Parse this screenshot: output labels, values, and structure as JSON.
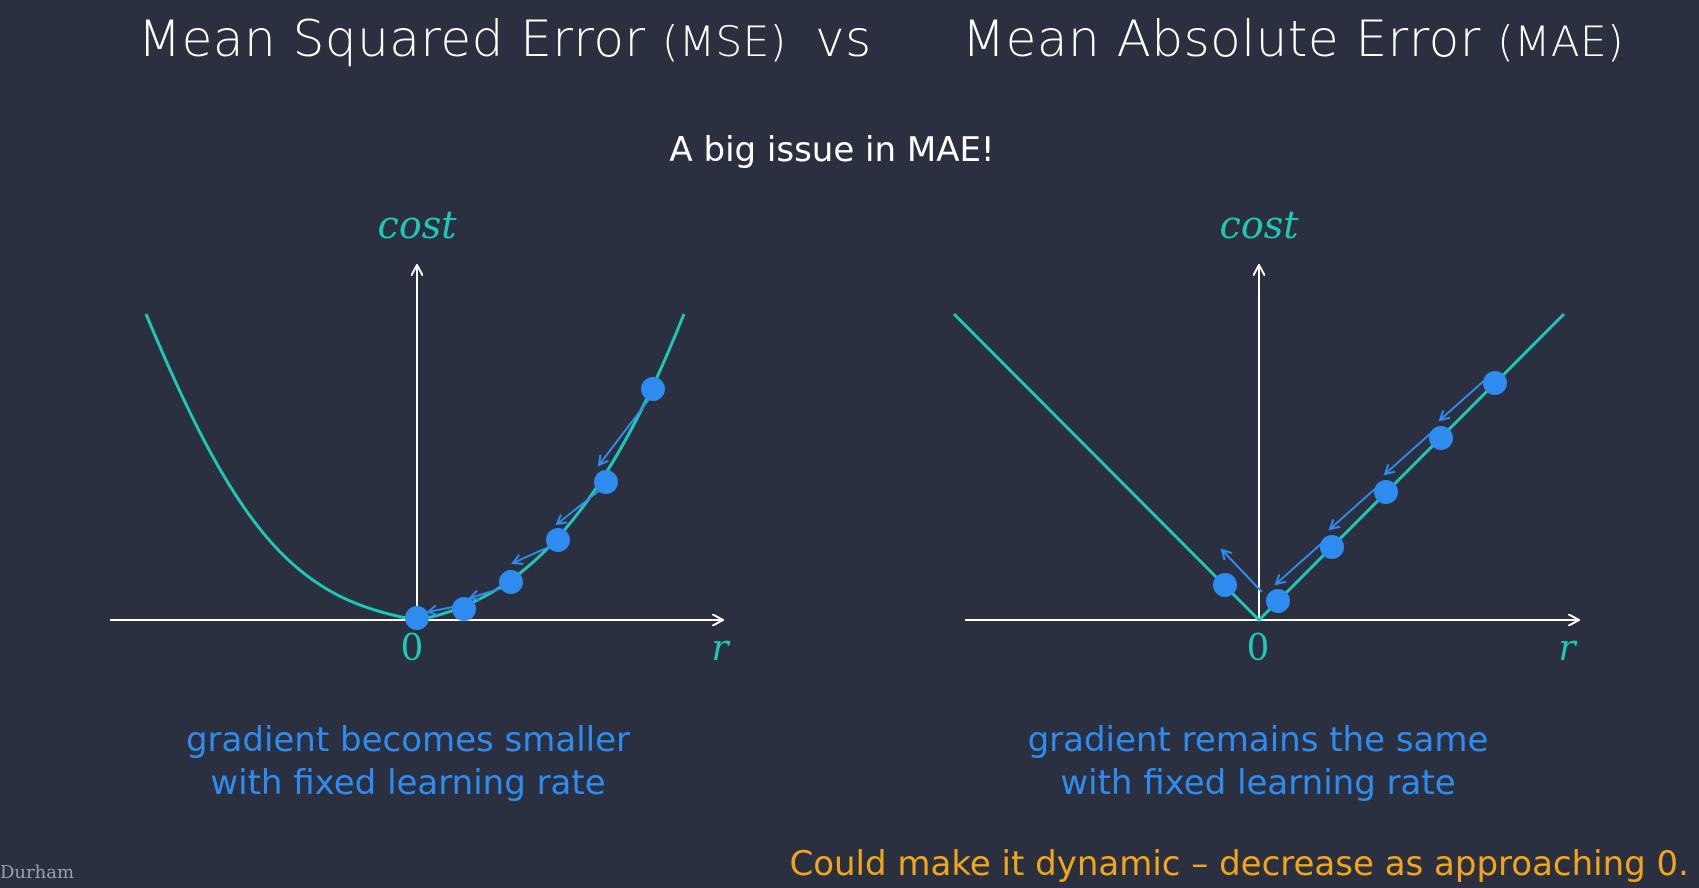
{
  "title": {
    "left_main": "Mean Squared Error ",
    "left_abbr": "(MSE)",
    "vs": "vs",
    "right_main": "Mean Absolute Error ",
    "right_abbr": "(MAE)"
  },
  "subtitle": "A big issue in MAE!",
  "left_plot": {
    "y_label": "cost",
    "x_label": "r",
    "origin_label": "0",
    "caption_line1": "gradient becomes smaller",
    "caption_line2": "with fixed learning rate"
  },
  "right_plot": {
    "y_label": "cost",
    "x_label": "r",
    "origin_label": "0",
    "caption_line1": "gradient remains the same",
    "caption_line2": "with fixed learning rate"
  },
  "footnote": "Could make it dynamic – decrease as approaching 0.",
  "logo_text": "Durham",
  "colors": {
    "background": "#2b3040",
    "curve": "#1fc8b4",
    "points": "#2e8cf0",
    "caption": "#2e8cf0",
    "footnote": "#f0a51b"
  }
}
